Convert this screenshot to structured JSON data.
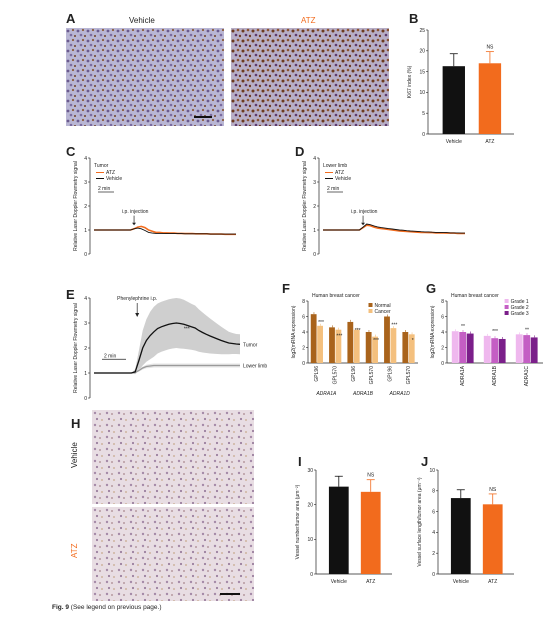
{
  "figure_caption": {
    "label": "Fig. 9",
    "text": "(See legend on previous page.)"
  },
  "panels": {
    "A": {
      "letter": "A",
      "left_label": "Vehicle",
      "right_label": "ATZ"
    },
    "B": {
      "letter": "B"
    },
    "C": {
      "letter": "C",
      "legend_title": "Tumor",
      "legend": [
        "ATZ",
        "Vehicle"
      ],
      "scale": "2 min",
      "arrow_label": "i.p. injection",
      "ylabel": "Relative Laser Doppler Flowmetry signal"
    },
    "D": {
      "letter": "D",
      "legend_title": "Lower limb",
      "legend": [
        "ATZ",
        "Vehicle"
      ],
      "scale": "2 min",
      "arrow_label": "i.p. injection",
      "ylabel": "Relative Laser Doppler Flowmetry signal"
    },
    "E": {
      "letter": "E",
      "arrow_label": "Phenylephrine i.p.",
      "scale": "2 min",
      "tumor_label": "Tumor",
      "limb_label": "Lower limb",
      "ylabel": "Relative Laser Doppler Flowmetry signal",
      "sig": "***"
    },
    "F": {
      "letter": "F"
    },
    "G": {
      "letter": "G"
    },
    "H": {
      "letter": "H",
      "top_label": "Vehicle",
      "bottom_label": "ATZ"
    },
    "I": {
      "letter": "I"
    },
    "J": {
      "letter": "J"
    }
  },
  "chart_data": [
    {
      "id": "B",
      "type": "bar",
      "categories": [
        "Vehicle",
        "ATZ"
      ],
      "values": [
        16.3,
        17.0
      ],
      "errors": [
        3.0,
        2.8
      ],
      "ylabel": "Ki67 index (%)",
      "ylim": [
        0,
        25
      ],
      "yticks": [
        0,
        5,
        10,
        15,
        20,
        25
      ],
      "annotation": "NS",
      "colors": [
        "#111111",
        "#f26b1d"
      ]
    },
    {
      "id": "C",
      "type": "line",
      "ylim": [
        0,
        4
      ],
      "yticks": [
        0,
        1,
        2,
        3,
        4
      ],
      "series": [
        {
          "name": "ATZ",
          "color": "#f26b1d",
          "values": [
            1.0,
            1.0,
            1.0,
            1.0,
            1.0,
            1.0,
            1.0,
            1.0,
            1.0,
            1.0,
            1.0,
            1.05,
            1.12,
            1.15,
            1.1,
            1.0,
            0.95,
            0.9,
            0.9,
            0.88,
            0.88,
            0.87,
            0.87,
            0.86,
            0.86,
            0.85,
            0.85,
            0.85,
            0.84,
            0.84,
            0.84,
            0.84,
            0.83,
            0.83,
            0.83,
            0.83,
            0.82,
            0.82,
            0.82,
            0.82
          ]
        },
        {
          "name": "Vehicle",
          "color": "#111111",
          "values": [
            1.0,
            1.0,
            1.0,
            1.0,
            1.0,
            1.0,
            1.0,
            1.0,
            1.0,
            1.0,
            1.0,
            1.05,
            1.08,
            1.05,
            0.98,
            0.9,
            0.87,
            0.86,
            0.86,
            0.86,
            0.85,
            0.85,
            0.85,
            0.85,
            0.85,
            0.84,
            0.84,
            0.84,
            0.84,
            0.84,
            0.84,
            0.84,
            0.83,
            0.83,
            0.83,
            0.83,
            0.83,
            0.83,
            0.83,
            0.83
          ]
        }
      ]
    },
    {
      "id": "D",
      "type": "line",
      "ylim": [
        0,
        4
      ],
      "yticks": [
        0,
        1,
        2,
        3,
        4
      ],
      "series": [
        {
          "name": "ATZ",
          "color": "#f26b1d",
          "values": [
            1.0,
            1.0,
            1.0,
            1.0,
            1.0,
            1.0,
            1.0,
            1.0,
            1.0,
            1.0,
            1.0,
            1.1,
            1.2,
            1.18,
            1.12,
            1.08,
            1.06,
            1.04,
            1.02,
            1.0,
            0.98,
            0.96,
            0.95,
            0.94,
            0.93,
            0.92,
            0.91,
            0.9,
            0.9,
            0.89,
            0.89,
            0.88,
            0.88,
            0.88,
            0.87,
            0.87,
            0.87,
            0.86,
            0.86,
            0.86
          ]
        },
        {
          "name": "Vehicle",
          "color": "#111111",
          "values": [
            1.0,
            1.0,
            1.0,
            1.0,
            1.0,
            1.0,
            1.0,
            1.0,
            1.0,
            1.0,
            1.0,
            1.12,
            1.25,
            1.22,
            1.17,
            1.13,
            1.1,
            1.08,
            1.06,
            1.04,
            1.02,
            1.0,
            0.99,
            0.97,
            0.96,
            0.95,
            0.94,
            0.93,
            0.92,
            0.92,
            0.91,
            0.9,
            0.9,
            0.89,
            0.89,
            0.88,
            0.88,
            0.88,
            0.87,
            0.87
          ]
        }
      ]
    },
    {
      "id": "E",
      "type": "line",
      "ylim": [
        0,
        4
      ],
      "yticks": [
        0,
        1,
        2,
        3,
        4
      ],
      "series": [
        {
          "name": "Tumor",
          "color": "#111111",
          "values": [
            1.0,
            1.0,
            1.0,
            1.0,
            1.0,
            1.0,
            1.0,
            1.0,
            1.0,
            1.0,
            1.0,
            1.05,
            1.5,
            2.0,
            2.3,
            2.5,
            2.65,
            2.78,
            2.85,
            2.9,
            2.95,
            2.98,
            3.0,
            2.98,
            2.95,
            2.9,
            2.85,
            2.8,
            2.7,
            2.62,
            2.55,
            2.48,
            2.42,
            2.36,
            2.3,
            2.25,
            2.2,
            2.18,
            2.16,
            2.15
          ],
          "band": [
            0,
            0,
            0,
            0,
            0,
            0,
            0,
            0,
            0,
            0,
            0,
            0.1,
            0.4,
            0.7,
            0.85,
            0.95,
            1.0,
            1.0,
            1.0,
            1.0,
            1.0,
            1.0,
            1.0,
            1.0,
            0.98,
            0.95,
            0.92,
            0.9,
            0.85,
            0.8,
            0.75,
            0.7,
            0.65,
            0.6,
            0.55,
            0.5,
            0.45,
            0.42,
            0.4,
            0.4
          ]
        },
        {
          "name": "Lower limb",
          "color": "#9a9a9a",
          "values": [
            1.0,
            1.0,
            1.0,
            1.0,
            1.0,
            1.0,
            1.0,
            1.0,
            1.0,
            1.0,
            1.0,
            1.02,
            1.1,
            1.2,
            1.26,
            1.28,
            1.3,
            1.3,
            1.3,
            1.3,
            1.3,
            1.3,
            1.3,
            1.3,
            1.3,
            1.3,
            1.3,
            1.3,
            1.3,
            1.3,
            1.3,
            1.3,
            1.3,
            1.3,
            1.3,
            1.3,
            1.3,
            1.3,
            1.3,
            1.3
          ],
          "band": [
            0,
            0,
            0,
            0,
            0,
            0,
            0,
            0,
            0,
            0,
            0,
            0.02,
            0.05,
            0.06,
            0.07,
            0.08,
            0.08,
            0.08,
            0.08,
            0.08,
            0.08,
            0.08,
            0.08,
            0.08,
            0.08,
            0.08,
            0.08,
            0.08,
            0.08,
            0.08,
            0.08,
            0.08,
            0.08,
            0.08,
            0.08,
            0.08,
            0.08,
            0.08,
            0.08,
            0.08
          ]
        }
      ]
    },
    {
      "id": "F",
      "type": "bar",
      "title": "Human breast cancer",
      "ylabel": "log2(mRNA expression)",
      "ylim": [
        0,
        8
      ],
      "yticks": [
        0,
        2,
        4,
        6,
        8
      ],
      "groups": [
        "ADRA1A",
        "ADRA1B",
        "ADRA1D"
      ],
      "categories": [
        "GPL96",
        "GPL570",
        "GPL96",
        "GPL570",
        "GPL96",
        "GPL570"
      ],
      "series": [
        {
          "name": "Normal",
          "color": "#a9631b",
          "values": [
            6.3,
            4.6,
            5.3,
            4.0,
            6.0,
            4.0
          ]
        },
        {
          "name": "Cancer",
          "color": "#f4c07e",
          "values": [
            4.8,
            4.3,
            4.3,
            3.4,
            4.5,
            3.7
          ]
        }
      ],
      "significance": [
        "***",
        "***",
        "***",
        "***",
        "***",
        "*"
      ]
    },
    {
      "id": "G",
      "type": "bar",
      "title": "Human breast cancer",
      "ylabel": "log2(mRNA expression)",
      "ylim": [
        0,
        8
      ],
      "yticks": [
        0,
        2,
        4,
        6,
        8
      ],
      "categories": [
        "ADRA1A",
        "ADRA1B",
        "ADRA1C"
      ],
      "series": [
        {
          "name": "Grade 1",
          "color": "#efb8ee",
          "values": [
            4.1,
            3.5,
            3.7
          ]
        },
        {
          "name": "Grade 2",
          "color": "#c45ec4",
          "values": [
            4.0,
            3.2,
            3.6
          ]
        },
        {
          "name": "Grade 3",
          "color": "#7b1f8a",
          "values": [
            3.8,
            3.1,
            3.3
          ]
        }
      ],
      "significance": [
        "**",
        "***",
        "**"
      ]
    },
    {
      "id": "I",
      "type": "bar",
      "categories": [
        "Vehicle",
        "ATZ"
      ],
      "values": [
        25.2,
        23.7
      ],
      "errors": [
        3.0,
        3.5
      ],
      "ylabel": "Vessel number/tumor area (μm⁻²)",
      "ylim": [
        0,
        30
      ],
      "yticks": [
        0,
        10,
        20,
        30
      ],
      "annotation": "NS",
      "colors": [
        "#111111",
        "#f26b1d"
      ]
    },
    {
      "id": "J",
      "type": "bar",
      "categories": [
        "Vehicle",
        "ATZ"
      ],
      "values": [
        7.3,
        6.7
      ],
      "errors": [
        0.8,
        1.0
      ],
      "ylabel": "Vessel surface length/tumor area (μm⁻¹)",
      "ylim": [
        0,
        10
      ],
      "yticks": [
        0,
        2,
        4,
        6,
        8,
        10
      ],
      "annotation": "NS",
      "colors": [
        "#111111",
        "#f26b1d"
      ]
    }
  ]
}
